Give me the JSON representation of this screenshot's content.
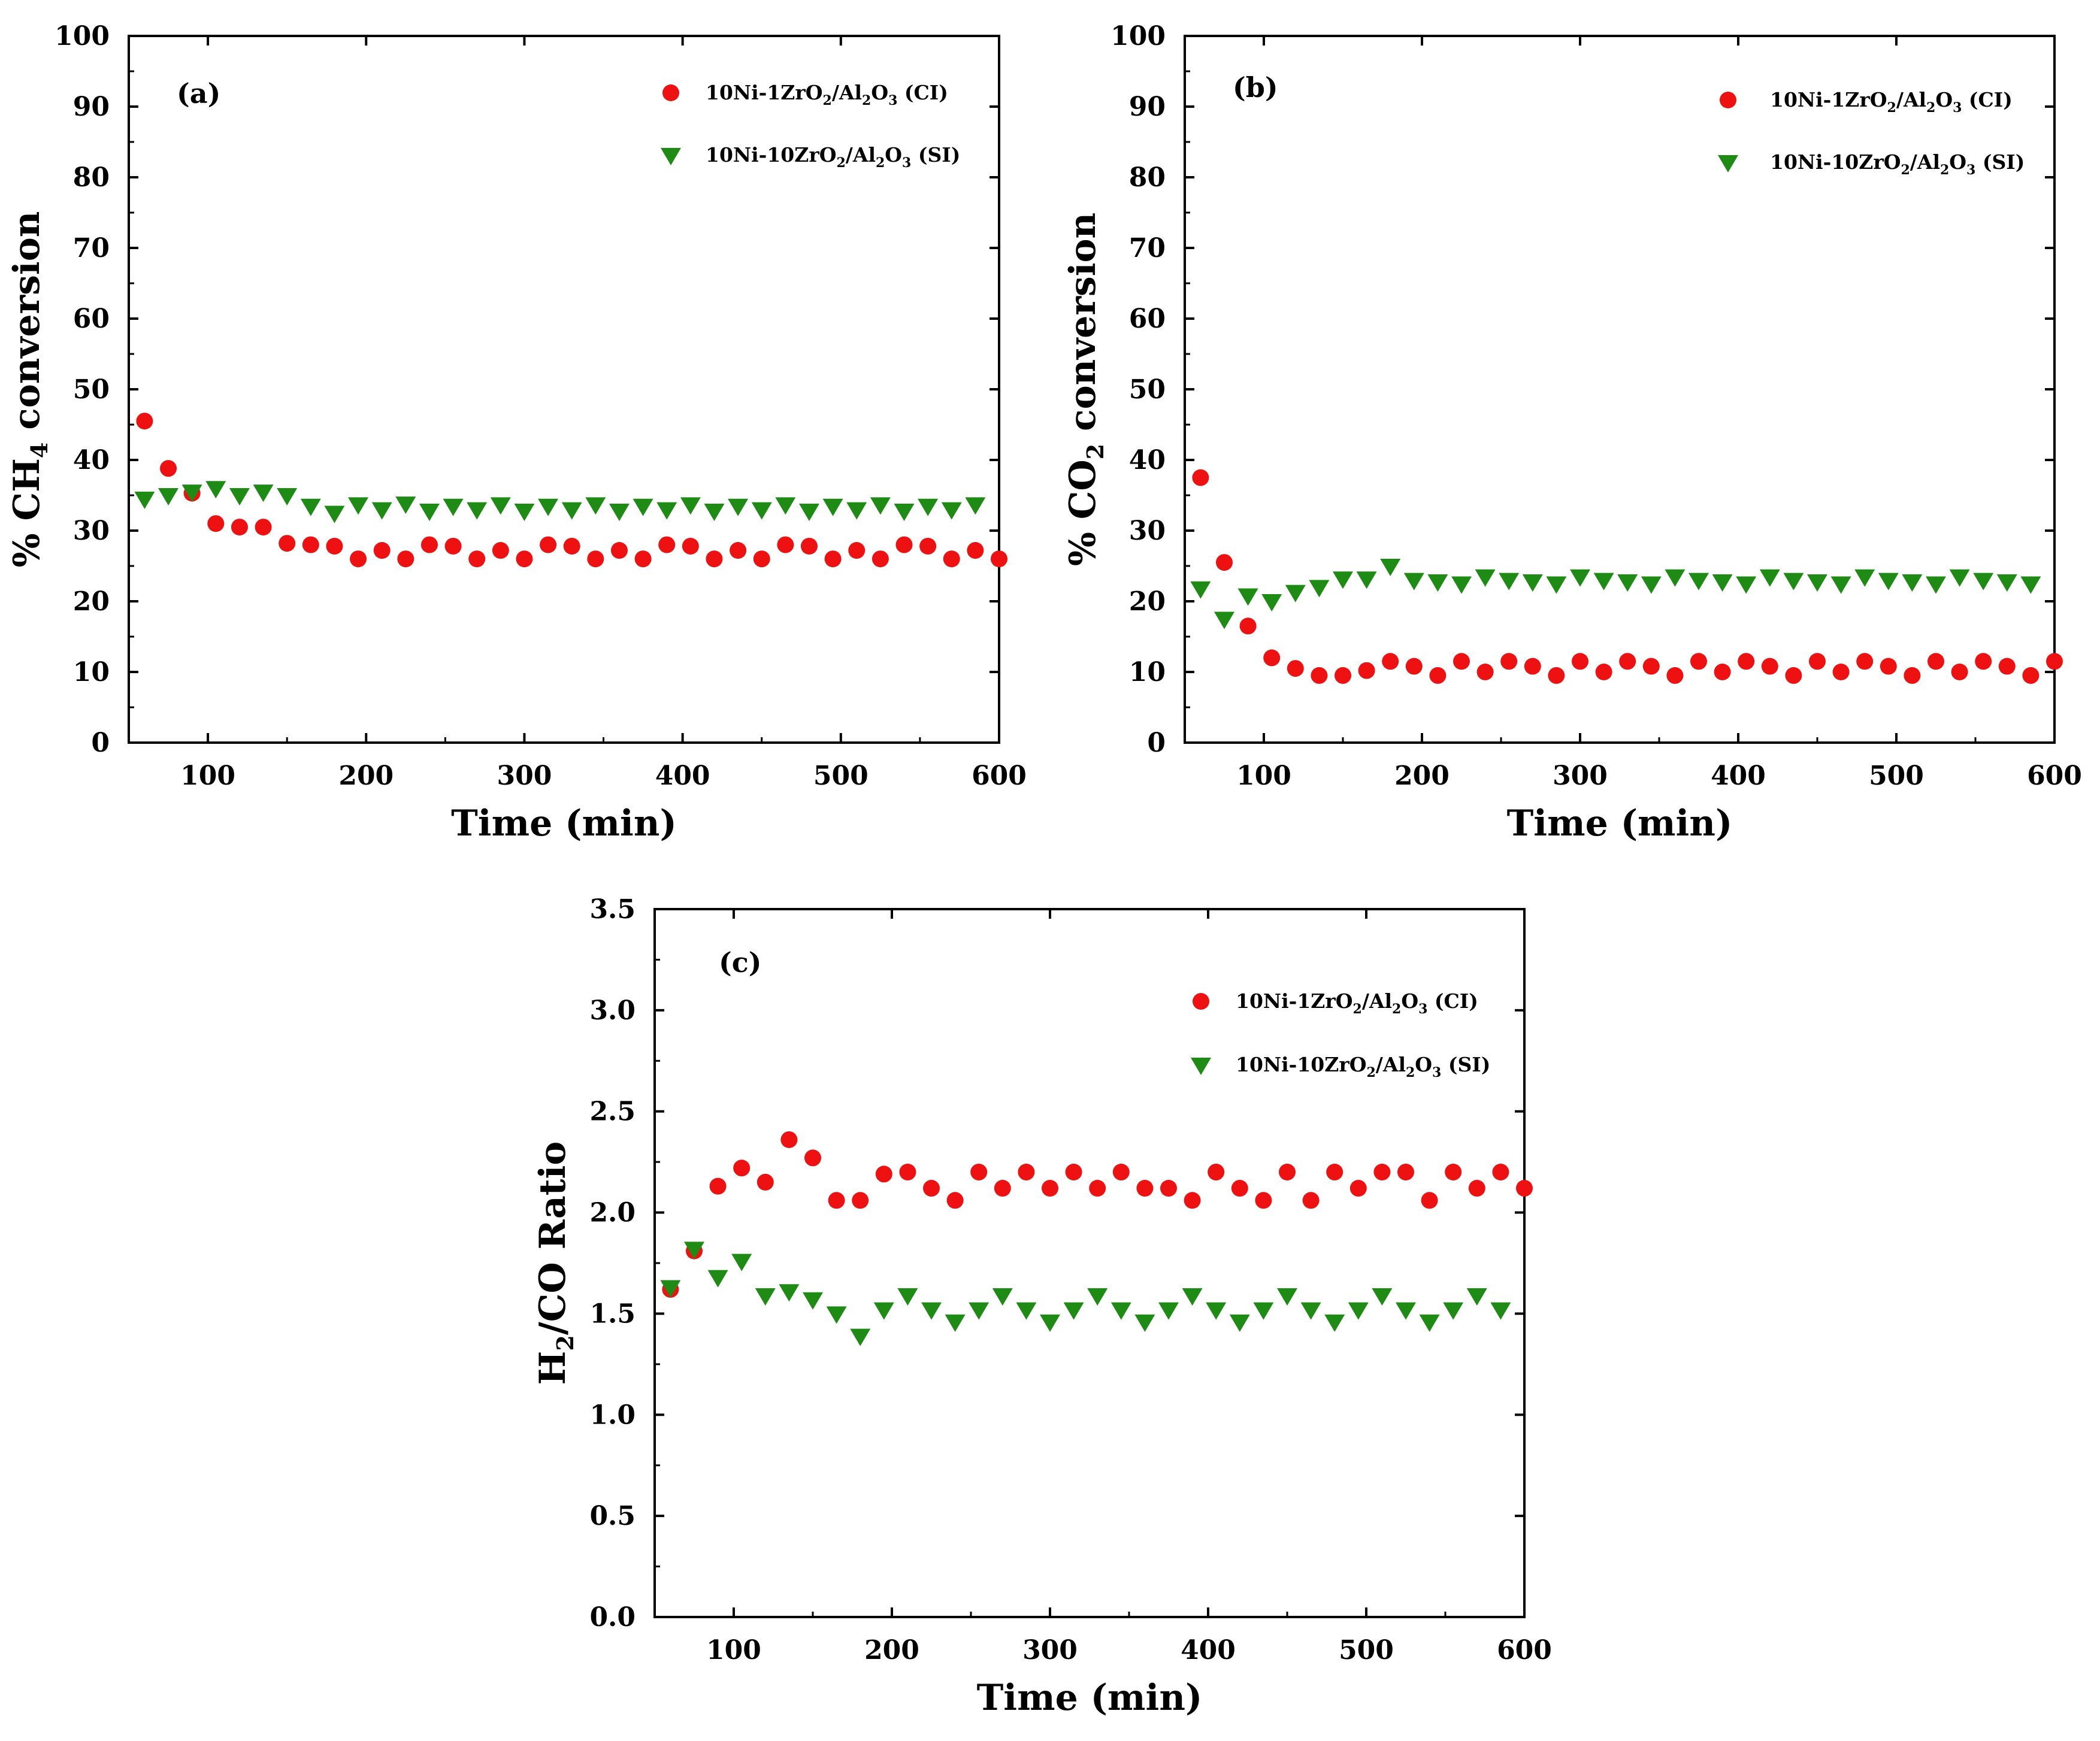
{
  "colors": {
    "ci": "#ee1111",
    "si": "#1e8c14",
    "axis": "#000000"
  },
  "chart_data": [
    {
      "id": "a",
      "type": "scatter",
      "panel_label": "(a)",
      "xlabel": "Time (min)",
      "ylabel": {
        "pre": "% CH",
        "sub": "4",
        "post": " conversion"
      },
      "xlim": [
        50,
        600
      ],
      "ylim": [
        0,
        100
      ],
      "xticks": [
        100,
        200,
        300,
        400,
        500,
        600
      ],
      "yticks": [
        0,
        10,
        20,
        30,
        40,
        50,
        60,
        70,
        80,
        90,
        100
      ],
      "y_decimals": 0,
      "legend": [
        {
          "series": 0,
          "parts": [
            "10Ni-1ZrO",
            "2",
            "/Al",
            "2",
            "O",
            "3",
            " (CI)"
          ]
        },
        {
          "series": 1,
          "parts": [
            "10Ni-10ZrO",
            "2",
            "/Al",
            "2",
            "O",
            "3",
            " (SI)"
          ]
        }
      ],
      "series": [
        {
          "name": "10Ni-1ZrO2/Al2O3 (CI)",
          "marker": "circle",
          "x": [
            60,
            75,
            90,
            105,
            120,
            135,
            150,
            165,
            180,
            195,
            210,
            225,
            240,
            255,
            270,
            285,
            300,
            315,
            330,
            345,
            360,
            375,
            390,
            405,
            420,
            435,
            450,
            465,
            480,
            495,
            510,
            525,
            540,
            555,
            570,
            585,
            600
          ],
          "y": [
            45.5,
            38.8,
            35.3,
            31.0,
            30.5,
            30.5,
            28.2,
            28.0,
            27.8,
            26.0,
            27.2,
            26.0,
            28.0,
            27.8,
            26.0,
            27.2,
            26.0,
            28.0,
            27.8,
            26.0,
            27.2,
            26.0,
            28.0,
            27.8,
            26.0,
            27.2,
            26.0,
            28.0,
            27.8,
            26.0,
            27.2,
            26.0,
            28.0,
            27.8,
            26.0,
            27.2,
            26.0
          ]
        },
        {
          "name": "10Ni-10ZrO2/Al2O3 (SI)",
          "marker": "triangle-down",
          "x": [
            60,
            75,
            90,
            105,
            120,
            135,
            150,
            165,
            180,
            195,
            210,
            225,
            240,
            255,
            270,
            285,
            300,
            315,
            330,
            345,
            360,
            375,
            390,
            405,
            420,
            435,
            450,
            465,
            480,
            495,
            510,
            525,
            540,
            555,
            570,
            585
          ],
          "y": [
            34.5,
            35.0,
            35.5,
            36.0,
            35.0,
            35.5,
            35.0,
            33.5,
            32.5,
            33.7,
            33.0,
            33.8,
            32.8,
            33.5,
            33.0,
            33.7,
            32.8,
            33.5,
            33.0,
            33.7,
            32.8,
            33.5,
            33.0,
            33.7,
            32.8,
            33.5,
            33.0,
            33.7,
            32.8,
            33.5,
            33.0,
            33.7,
            32.8,
            33.5,
            33.0,
            33.7
          ]
        }
      ]
    },
    {
      "id": "b",
      "type": "scatter",
      "panel_label": "(b)",
      "xlabel": "Time (min)",
      "ylabel": {
        "pre": "% CO",
        "sub": "2",
        "post": " conversion"
      },
      "xlim": [
        50,
        600
      ],
      "ylim": [
        0,
        100
      ],
      "xticks": [
        100,
        200,
        300,
        400,
        500,
        600
      ],
      "yticks": [
        0,
        10,
        20,
        30,
        40,
        50,
        60,
        70,
        80,
        90,
        100
      ],
      "y_decimals": 0,
      "legend": [
        {
          "series": 0,
          "parts": [
            "10Ni-1ZrO",
            "2",
            "/Al",
            "2",
            "O",
            "3",
            " (CI)"
          ]
        },
        {
          "series": 1,
          "parts": [
            "10Ni-10ZrO",
            "2",
            "/Al",
            "2",
            "O",
            "3",
            " (SI)"
          ]
        }
      ],
      "series": [
        {
          "name": "10Ni-1ZrO2/Al2O3 (CI)",
          "marker": "circle",
          "x": [
            60,
            75,
            90,
            105,
            120,
            135,
            150,
            165,
            180,
            195,
            210,
            225,
            240,
            255,
            270,
            285,
            300,
            315,
            330,
            345,
            360,
            375,
            390,
            405,
            420,
            435,
            450,
            465,
            480,
            495,
            510,
            525,
            540,
            555,
            570,
            585,
            600
          ],
          "y": [
            37.5,
            25.5,
            16.5,
            12.0,
            10.5,
            9.5,
            9.5,
            10.2,
            11.5,
            10.8,
            9.5,
            11.5,
            10.0,
            11.5,
            10.8,
            9.5,
            11.5,
            10.0,
            11.5,
            10.8,
            9.5,
            11.5,
            10.0,
            11.5,
            10.8,
            9.5,
            11.5,
            10.0,
            11.5,
            10.8,
            9.5,
            11.5,
            10.0,
            11.5,
            10.8,
            9.5,
            11.5
          ]
        },
        {
          "name": "10Ni-10ZrO2/Al2O3 (SI)",
          "marker": "triangle-down",
          "x": [
            60,
            75,
            90,
            105,
            120,
            135,
            150,
            165,
            180,
            195,
            210,
            225,
            240,
            255,
            270,
            285,
            300,
            315,
            330,
            345,
            360,
            375,
            390,
            405,
            420,
            435,
            450,
            465,
            480,
            495,
            510,
            525,
            540,
            555,
            570,
            585
          ],
          "y": [
            21.8,
            17.5,
            20.8,
            20.0,
            21.3,
            22.0,
            23.2,
            23.2,
            25.0,
            23.0,
            22.8,
            22.5,
            23.5,
            23.0,
            22.8,
            22.5,
            23.5,
            23.0,
            22.8,
            22.5,
            23.5,
            23.0,
            22.8,
            22.5,
            23.5,
            23.0,
            22.8,
            22.5,
            23.5,
            23.0,
            22.8,
            22.5,
            23.5,
            23.0,
            22.8,
            22.5
          ]
        }
      ]
    },
    {
      "id": "c",
      "type": "scatter",
      "panel_label": "(c)",
      "xlabel": "Time (min)",
      "ylabel": {
        "pre": "H",
        "sub": "2",
        "post": "/CO Ratio"
      },
      "xlim": [
        50,
        600
      ],
      "ylim": [
        0,
        3.5
      ],
      "xticks": [
        100,
        200,
        300,
        400,
        500,
        600
      ],
      "yticks": [
        0.0,
        0.5,
        1.0,
        1.5,
        2.0,
        2.5,
        3.0,
        3.5
      ],
      "y_decimals": 1,
      "legend": [
        {
          "series": 0,
          "parts": [
            "10Ni-1ZrO",
            "2",
            "/Al",
            "2",
            "O",
            "3",
            " (CI)"
          ]
        },
        {
          "series": 1,
          "parts": [
            "10Ni-10ZrO",
            "2",
            "/Al",
            "2",
            "O",
            "3",
            " (SI)"
          ]
        }
      ],
      "series": [
        {
          "name": "10Ni-1ZrO2/Al2O3 (CI)",
          "marker": "circle",
          "x": [
            60,
            75,
            90,
            105,
            120,
            135,
            150,
            165,
            180,
            195,
            210,
            225,
            240,
            255,
            270,
            285,
            300,
            315,
            330,
            345,
            360,
            375,
            390,
            405,
            420,
            435,
            450,
            465,
            480,
            495,
            510,
            525,
            540,
            555,
            570,
            585,
            600
          ],
          "y": [
            1.62,
            1.81,
            2.13,
            2.22,
            2.15,
            2.36,
            2.27,
            2.06,
            2.06,
            2.19,
            2.2,
            2.12,
            2.06,
            2.2,
            2.12,
            2.2,
            2.12,
            2.2,
            2.12,
            2.2,
            2.12,
            2.12,
            2.06,
            2.2,
            2.12,
            2.06,
            2.2,
            2.06,
            2.2,
            2.12,
            2.2,
            2.2,
            2.06,
            2.2,
            2.12,
            2.2,
            2.12
          ]
        },
        {
          "name": "10Ni-10ZrO2/Al2O3 (SI)",
          "marker": "triangle-down",
          "x": [
            60,
            75,
            90,
            105,
            120,
            135,
            150,
            165,
            180,
            195,
            210,
            225,
            240,
            255,
            270,
            285,
            300,
            315,
            330,
            345,
            360,
            375,
            390,
            405,
            420,
            435,
            450,
            465,
            480,
            495,
            510,
            525,
            540,
            555,
            570,
            585
          ],
          "y": [
            1.63,
            1.82,
            1.68,
            1.76,
            1.59,
            1.61,
            1.57,
            1.5,
            1.39,
            1.52,
            1.59,
            1.52,
            1.46,
            1.52,
            1.59,
            1.52,
            1.46,
            1.52,
            1.59,
            1.52,
            1.46,
            1.52,
            1.59,
            1.52,
            1.46,
            1.52,
            1.59,
            1.52,
            1.46,
            1.52,
            1.59,
            1.52,
            1.46,
            1.52,
            1.59,
            1.52
          ]
        }
      ]
    }
  ]
}
